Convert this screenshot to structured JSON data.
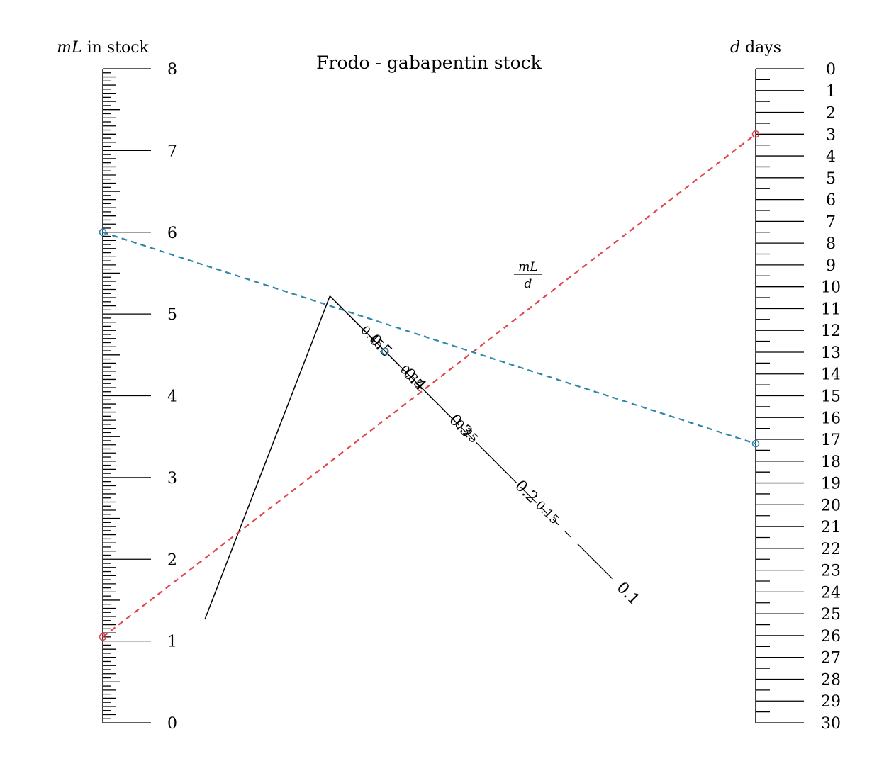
{
  "title": "Frodo - gabapentin stock",
  "left_axis": {
    "var": "mL",
    "label_rest": " in stock",
    "min": 0,
    "max": 8,
    "labels": [
      "0",
      "1",
      "2",
      "3",
      "4",
      "5",
      "6",
      "7",
      "8"
    ]
  },
  "right_axis": {
    "var": "d",
    "label_rest": " days",
    "min": 0,
    "max": 30,
    "labels": [
      "0",
      "1",
      "2",
      "3",
      "4",
      "5",
      "6",
      "7",
      "8",
      "9",
      "10",
      "11",
      "12",
      "13",
      "14",
      "15",
      "16",
      "17",
      "18",
      "19",
      "20",
      "21",
      "22",
      "23",
      "24",
      "25",
      "26",
      "27",
      "28",
      "29",
      "30"
    ]
  },
  "middle_axis": {
    "frac_numerator": "mL",
    "frac_denominator": "d",
    "major_labels": [
      "0.1",
      "0.2",
      "0.3",
      "0.4",
      "0.5"
    ],
    "minor_labels": [
      "0.15",
      "0.25",
      "0.35",
      "0.45"
    ]
  },
  "readings": [
    {
      "name": "red",
      "color": "#e3434b",
      "ml": 1.05,
      "days": 3,
      "rate": 0.35
    },
    {
      "name": "blue",
      "color": "#2e86a8",
      "ml": 6,
      "days": 17.2,
      "rate": 0.35
    }
  ]
}
